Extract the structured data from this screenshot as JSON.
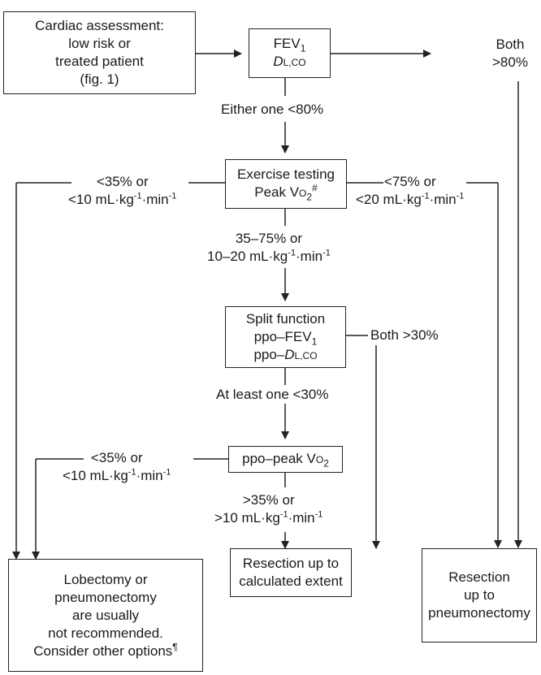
{
  "boxes": {
    "cardiac": [
      "Cardiac assessment:",
      "low risk or",
      "treated patient",
      "(fig. 1)"
    ],
    "fev_dlco": {
      "fev": "FEV",
      "fev_sub": "1",
      "dl_d": "D",
      "dl_rest": "L,CO"
    },
    "exercise": {
      "line1": "Exercise testing",
      "line2": "Peak V",
      "o2": "O",
      "two": "2",
      "sup": "#"
    },
    "split": {
      "line1": "Split function",
      "line2a": "ppo–FEV",
      "line2sub": "1",
      "line3a": "ppo–",
      "line3d": "D",
      "line3rest": "L,CO"
    },
    "ppo_peak": {
      "text": "ppo–peak V",
      "o2": "O",
      "two": "2"
    },
    "not_recommended": [
      "Lobectomy or",
      "pneumonectomy",
      "are usually",
      "not recommended.",
      "Consider other options"
    ],
    "not_recommended_sup": "¶",
    "resection_calc": [
      "Resection up to",
      "calculated extent"
    ],
    "resection_pneumo": [
      "Resection",
      "up to",
      "pneumonectomy"
    ]
  },
  "labels": {
    "both_80": [
      "Both",
      ">80%"
    ],
    "either_80": "Either one <80%",
    "lt35_a": {
      "l1": "<35% or",
      "l2a": "<10 mL·kg",
      "e1": "-1",
      "mid": "·min",
      "e2": "-1"
    },
    "lt75": {
      "l1": "<75% or",
      "l2a": "<20 mL·kg",
      "e1": "-1",
      "mid": "·min",
      "e2": "-1"
    },
    "range": {
      "l1": "35–75% or",
      "l2a": "10–20 mL·kg",
      "e1": "-1",
      "mid": "·min",
      "e2": "-1"
    },
    "both_30": "Both >30%",
    "atleast_30": "At least one <30%",
    "lt35_b": {
      "l1": "<35% or",
      "l2a": "<10 mL·kg",
      "e1": "-1",
      "mid": "·min",
      "e2": "-1"
    },
    "gt35": {
      "l1": ">35% or",
      "l2a": ">10 mL·kg",
      "e1": "-1",
      "mid": "·min",
      "e2": "-1"
    }
  }
}
